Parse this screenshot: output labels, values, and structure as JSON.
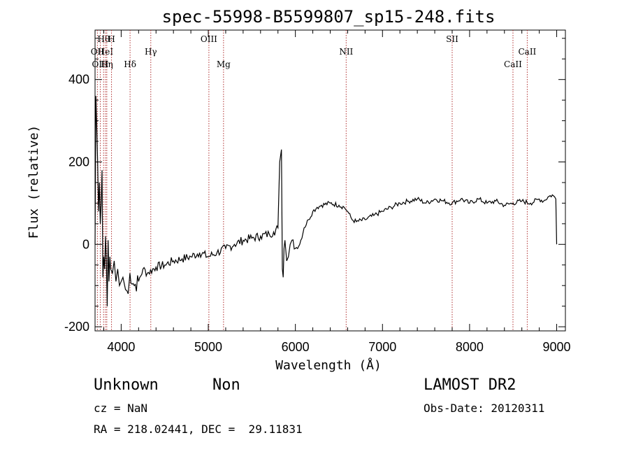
{
  "chart_data": {
    "type": "line",
    "title": "spec-55998-B5599807_sp15-248.fits",
    "xlabel": "Wavelength (Å)",
    "ylabel": "Flux (relative)",
    "xlim": [
      3700,
      9100
    ],
    "ylim": [
      -210,
      520
    ],
    "xticks": [
      4000,
      5000,
      6000,
      7000,
      8000,
      9000
    ],
    "yticks": [
      -200,
      0,
      200,
      400
    ],
    "grid": false,
    "series": [
      {
        "x": [
          3700,
          3710,
          3720,
          3730,
          3740,
          3750,
          3760,
          3770,
          3780,
          3790,
          3800,
          3810,
          3820,
          3830,
          3840,
          3850,
          3860,
          3870,
          3880,
          3900,
          3920,
          3940,
          3960,
          3980,
          4000,
          4020,
          4050,
          4080,
          4100,
          4150,
          4200,
          4250,
          4300,
          4400,
          4500,
          4600,
          4700,
          4800,
          4900,
          5000,
          5100,
          5200,
          5300,
          5400,
          5500,
          5600,
          5700,
          5750,
          5800,
          5820,
          5840,
          5850,
          5860,
          5870,
          5880,
          5900,
          5920,
          5940,
          5960,
          6000,
          6050,
          6100,
          6150,
          6200,
          6250,
          6300,
          6400,
          6500,
          6560,
          6600,
          6650,
          6700,
          6800,
          6900,
          7000,
          7100,
          7200,
          7300,
          7400,
          7500,
          7600,
          7700,
          7800,
          7900,
          8000,
          8100,
          8200,
          8300,
          8400,
          8500,
          8600,
          8700,
          8800,
          8850,
          8900,
          8950,
          8990,
          9000
        ],
        "y": [
          0,
          360,
          280,
          200,
          80,
          150,
          50,
          100,
          180,
          -80,
          -30,
          -60,
          20,
          -40,
          -150,
          10,
          -90,
          -30,
          -60,
          -70,
          -40,
          -90,
          -60,
          -100,
          -90,
          -80,
          -110,
          -120,
          -70,
          -100,
          -90,
          -60,
          -70,
          -55,
          -50,
          -40,
          -35,
          -30,
          -20,
          -30,
          -20,
          -10,
          0,
          10,
          15,
          20,
          25,
          30,
          40,
          200,
          230,
          -60,
          -80,
          -10,
          10,
          -40,
          -30,
          0,
          10,
          -10,
          0,
          40,
          60,
          80,
          90,
          95,
          100,
          95,
          90,
          80,
          60,
          55,
          60,
          70,
          80,
          90,
          100,
          105,
          110,
          100,
          110,
          105,
          100,
          110,
          100,
          110,
          100,
          105,
          95,
          100,
          105,
          100,
          110,
          105,
          115,
          120,
          110,
          0
        ]
      }
    ],
    "line_markers": [
      {
        "label": "OII",
        "wl": 3727,
        "row": 2
      },
      {
        "label": "OIII",
        "wl": 3760,
        "row": 3
      },
      {
        "label": "Hθ",
        "wl": 3798,
        "row": 1
      },
      {
        "label": "HeI",
        "wl": 3820,
        "row": 2
      },
      {
        "label": "Hη",
        "wl": 3835,
        "row": 3
      },
      {
        "label": "H",
        "wl": 3889,
        "row": 1
      },
      {
        "label": "Hδ",
        "wl": 4102,
        "row": 3
      },
      {
        "label": "Hγ",
        "wl": 4340,
        "row": 2
      },
      {
        "label": "OIII",
        "wl": 5007,
        "row": 1
      },
      {
        "label": "Mg",
        "wl": 5175,
        "row": 3
      },
      {
        "label": "NII",
        "wl": 6583,
        "row": 2
      },
      {
        "label": "SII",
        "wl": 7800,
        "row": 1
      },
      {
        "label": "CaII",
        "wl": 8498,
        "row": 3
      },
      {
        "label": "CaII",
        "wl": 8662,
        "row": 2
      }
    ]
  },
  "info": {
    "object_class": "Unknown",
    "object_subclass": "Non",
    "survey": "LAMOST DR2",
    "cz": "cz = NaN",
    "obs_date": "Obs-Date: 20120311",
    "coords": "RA = 218.02441, DEC =  29.11831"
  }
}
